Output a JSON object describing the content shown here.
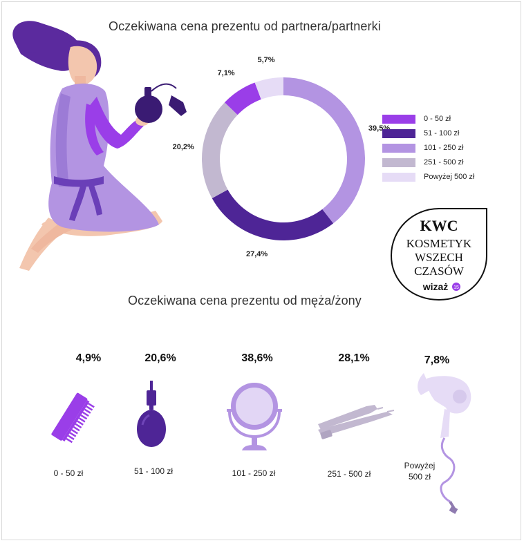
{
  "chart_data": [
    {
      "type": "pie",
      "title": "Oczekiwana cena prezentu od partnera/partnerki",
      "categories": [
        "0 - 50  zł",
        "51 - 100 zł",
        "101 - 250 zł",
        "251 - 500 zł",
        "Powyżej 500 zł"
      ],
      "values": [
        7.1,
        27.4,
        39.5,
        20.2,
        5.7
      ],
      "value_labels": [
        "7,1%",
        "27,4%",
        "39,5%",
        "20,2%",
        "5,7%"
      ],
      "colors": [
        "#9a3ee8",
        "#4e2596",
        "#b394e2",
        "#c2b8d0",
        "#e6dcf6"
      ],
      "legend_position": "right"
    },
    {
      "type": "table",
      "title": "Oczekiwana cena prezentu od męża/żony",
      "categories": [
        "0 - 50  zł",
        "51 - 100 zł",
        "101 - 250 zł",
        "251 - 500 zł",
        "Powyżej 500 zł"
      ],
      "values": [
        4.9,
        20.6,
        38.6,
        28.1,
        7.8
      ],
      "value_labels": [
        "4,9%",
        "20,6%",
        "38,6%",
        "28,1%",
        "7,8%"
      ],
      "range_lines": [
        [
          "0 - 50  zł"
        ],
        [
          "51 - 100 zł"
        ],
        [
          "101 - 250 zł"
        ],
        [
          "251 - 500 zł"
        ],
        [
          "Powyżej",
          "500 zł"
        ]
      ],
      "icons": [
        "comb-icon",
        "perfume-bottle-icon",
        "mirror-icon",
        "hair-straightener-icon",
        "hair-dryer-icon"
      ]
    }
  ],
  "badge": {
    "logo": "KWC",
    "lines": [
      "KOSMETYK",
      "WSZECH",
      "CZASÓW"
    ],
    "brand": "wizaż",
    "brand_mark": "15"
  },
  "colors": {
    "purple_bright": "#9a3ee8",
    "purple_dark": "#4e2596",
    "purple_mid": "#b394e2",
    "grey_lilac": "#c2b8d0",
    "lilac_light": "#e6dcf6"
  }
}
